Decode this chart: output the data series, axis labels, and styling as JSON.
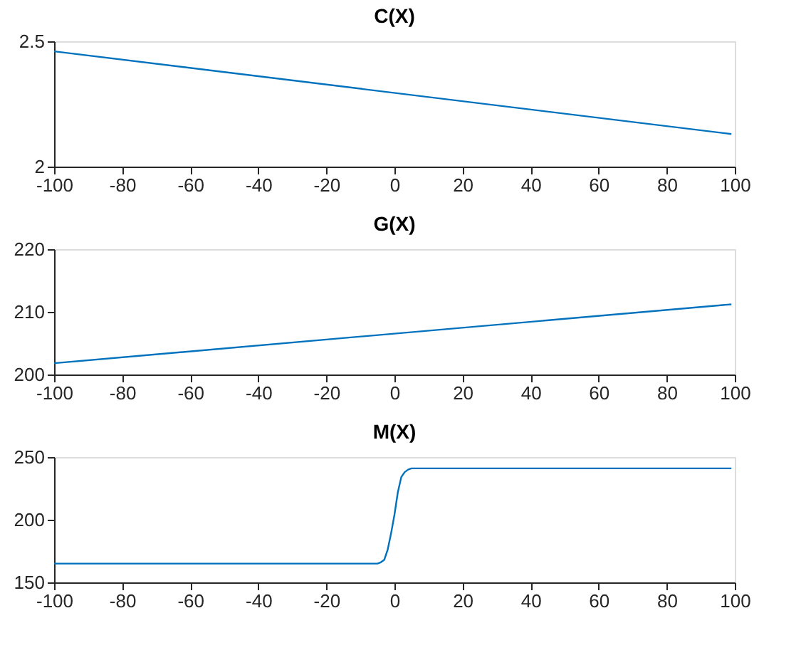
{
  "chart_data": [
    {
      "type": "line",
      "title": "C(X)",
      "x": [
        -100,
        99
      ],
      "series": [
        {
          "color": "#0072bd",
          "values": [
            2.46,
            2.13
          ]
        }
      ],
      "xlim": [
        -100,
        100
      ],
      "xticks": [
        -100,
        -80,
        -60,
        -40,
        -20,
        0,
        20,
        40,
        60,
        80,
        100
      ],
      "ylim": [
        2,
        2.5
      ],
      "yticks": [
        2,
        2.5
      ],
      "grid": false
    },
    {
      "type": "line",
      "title": "G(X)",
      "x": [
        -100,
        99
      ],
      "series": [
        {
          "color": "#0072bd",
          "values": [
            201.8,
            211.2
          ]
        }
      ],
      "xlim": [
        -100,
        100
      ],
      "xticks": [
        -100,
        -80,
        -60,
        -40,
        -20,
        0,
        20,
        40,
        60,
        80,
        100
      ],
      "ylim": [
        200,
        220
      ],
      "yticks": [
        200,
        210,
        220
      ],
      "grid": false
    },
    {
      "type": "line",
      "title": "M(X)",
      "x": [
        -100,
        -5,
        -4,
        -3,
        -2,
        -1,
        0,
        1,
        2,
        3,
        4,
        5,
        99
      ],
      "series": [
        {
          "color": "#0072bd",
          "values": [
            165,
            165,
            166,
            168,
            176,
            189,
            204,
            222,
            234,
            238,
            240,
            241,
            241
          ]
        }
      ],
      "xlim": [
        -100,
        100
      ],
      "xticks": [
        -100,
        -80,
        -60,
        -40,
        -20,
        0,
        20,
        40,
        60,
        80,
        100
      ],
      "ylim": [
        150,
        250
      ],
      "yticks": [
        150,
        200,
        250
      ],
      "grid": false
    }
  ]
}
